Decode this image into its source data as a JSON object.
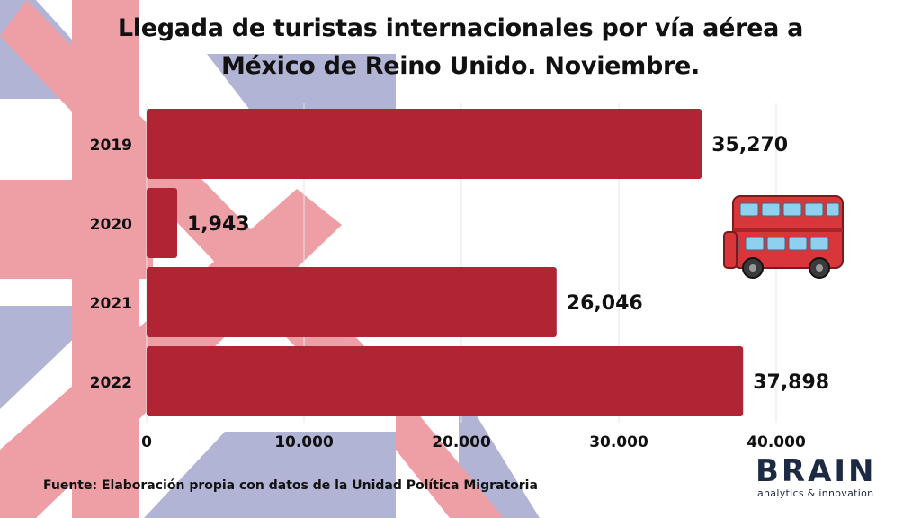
{
  "title_lines": [
    "Llegada de turistas internacionales por vía aérea a",
    "México de Reino Unido. Noviembre."
  ],
  "source": "Fuente: Elaboración propia con datos de la Unidad Política Migratoria",
  "logo": {
    "word": "BRAIN",
    "tagline": "analytics & innovation"
  },
  "colors": {
    "bar": "#b02434",
    "flag_red": "#ee9aa2",
    "flag_blue": "#aeb1d4",
    "text": "#111111",
    "logo": "#1d2a44"
  },
  "decorations": [
    "union-jack-flag",
    "double-decker-bus"
  ],
  "chart_data": {
    "type": "bar",
    "orientation": "horizontal",
    "title": "Llegada de turistas internacionales por vía aérea a México de Reino Unido. Noviembre.",
    "categories": [
      "2019",
      "2020",
      "2021",
      "2022"
    ],
    "values": [
      35270,
      1943,
      26046,
      37898
    ],
    "value_labels": [
      "35,270",
      "1,943",
      "26,046",
      "37,898"
    ],
    "xlim": [
      0,
      40000
    ],
    "x_ticks": [
      0,
      10000,
      20000,
      30000,
      40000
    ],
    "x_tick_labels": [
      "0",
      "10.000",
      "20.000",
      "30.000",
      "40.000"
    ],
    "grid": true,
    "legend": "none"
  }
}
